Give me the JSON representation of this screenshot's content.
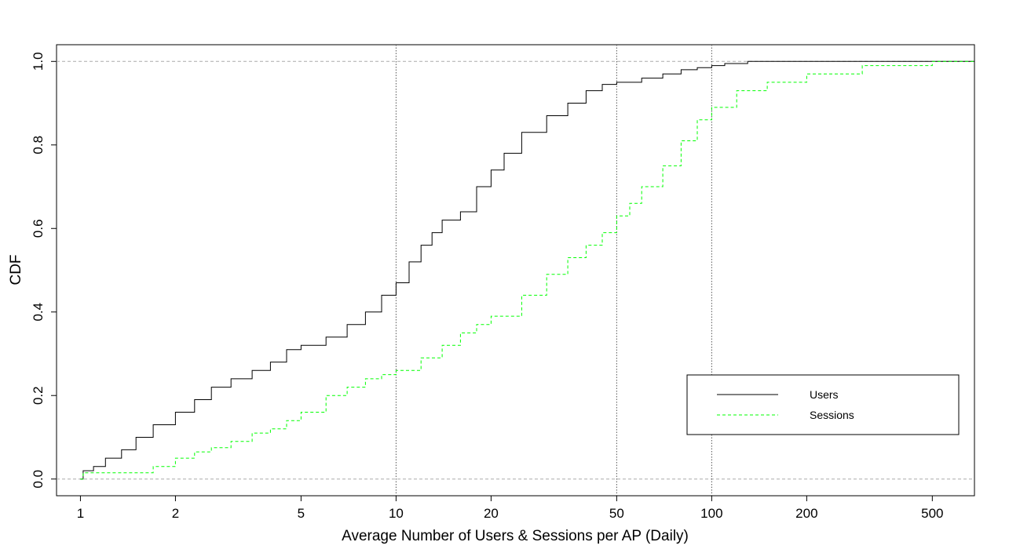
{
  "chart_data": {
    "type": "line",
    "xlabel": "Average Number of Users & Sessions per AP (Daily)",
    "ylabel": "CDF",
    "x_scale": "log",
    "xlim": [
      0.84,
      680
    ],
    "ylim": [
      -0.04,
      1.04
    ],
    "x_ticks": [
      1,
      2,
      5,
      10,
      20,
      50,
      100,
      200,
      500
    ],
    "x_tick_labels": [
      "1",
      "2",
      "5",
      "10",
      "20",
      "50",
      "100",
      "200",
      "500"
    ],
    "y_ticks": [
      0.0,
      0.2,
      0.4,
      0.6,
      0.8,
      1.0
    ],
    "y_tick_labels": [
      "0.0",
      "0.2",
      "0.4",
      "0.6",
      "0.8",
      "1.0"
    ],
    "vertical_reference_lines": [
      10,
      50,
      100
    ],
    "horizontal_reference_lines": [
      0,
      1
    ],
    "legend": {
      "position": "bottom-right",
      "entries": [
        "Users",
        "Sessions"
      ]
    },
    "series": [
      {
        "name": "Users",
        "color": "#000000",
        "dash": "solid",
        "x": [
          1,
          1.02,
          1.1,
          1.2,
          1.35,
          1.5,
          1.7,
          2,
          2.3,
          2.6,
          3,
          3.5,
          4,
          4.5,
          5,
          6,
          7,
          8,
          9,
          10,
          11,
          12,
          13,
          14,
          16,
          18,
          20,
          22,
          25,
          30,
          35,
          40,
          45,
          50,
          60,
          70,
          80,
          90,
          100,
          110,
          130,
          150,
          200,
          300,
          500,
          680
        ],
        "y": [
          0,
          0.02,
          0.03,
          0.05,
          0.07,
          0.1,
          0.13,
          0.16,
          0.19,
          0.22,
          0.24,
          0.26,
          0.28,
          0.31,
          0.32,
          0.34,
          0.37,
          0.4,
          0.44,
          0.47,
          0.52,
          0.56,
          0.59,
          0.62,
          0.64,
          0.7,
          0.74,
          0.78,
          0.83,
          0.87,
          0.9,
          0.93,
          0.945,
          0.95,
          0.96,
          0.97,
          0.98,
          0.985,
          0.99,
          0.995,
          1.0,
          1.0,
          1.0,
          1.0,
          1.0,
          1.0
        ]
      },
      {
        "name": "Sessions",
        "color": "#00ff00",
        "dash": "dashed",
        "x": [
          1,
          1.02,
          1.3,
          1.5,
          1.7,
          2,
          2.3,
          2.6,
          3,
          3.5,
          4,
          4.5,
          5,
          6,
          7,
          8,
          9,
          10,
          12,
          14,
          16,
          18,
          20,
          25,
          30,
          35,
          40,
          45,
          50,
          55,
          60,
          70,
          80,
          90,
          100,
          120,
          150,
          200,
          250,
          300,
          400,
          500,
          680
        ],
        "y": [
          0,
          0.015,
          0.015,
          0.015,
          0.03,
          0.05,
          0.065,
          0.075,
          0.09,
          0.11,
          0.12,
          0.14,
          0.16,
          0.2,
          0.22,
          0.24,
          0.25,
          0.26,
          0.29,
          0.32,
          0.35,
          0.37,
          0.39,
          0.44,
          0.49,
          0.53,
          0.56,
          0.59,
          0.63,
          0.66,
          0.7,
          0.75,
          0.81,
          0.86,
          0.89,
          0.93,
          0.95,
          0.97,
          0.97,
          0.99,
          0.99,
          1.0,
          1.0
        ]
      }
    ]
  }
}
